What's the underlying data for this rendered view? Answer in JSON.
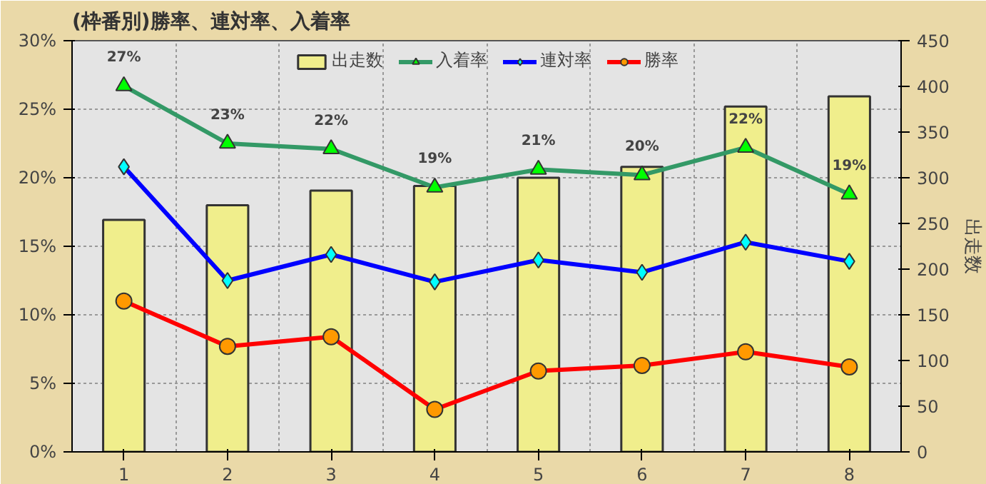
{
  "chart_data": {
    "type": "line",
    "title": "(枠番別)勝率、連対率、入着率",
    "y2label": "出走数",
    "categories": [
      "1",
      "2",
      "3",
      "4",
      "5",
      "6",
      "7",
      "8"
    ],
    "ylim": [
      0,
      30
    ],
    "yticks": [
      {
        "value": 0,
        "label": "0%"
      },
      {
        "value": 5,
        "label": "5%"
      },
      {
        "value": 10,
        "label": "10%"
      },
      {
        "value": 15,
        "label": "15%"
      },
      {
        "value": 20,
        "label": "20%"
      },
      {
        "value": 25,
        "label": "25%"
      },
      {
        "value": 30,
        "label": "30%"
      }
    ],
    "y2lim": [
      0,
      450
    ],
    "y2ticks": [
      0,
      50,
      100,
      150,
      200,
      250,
      300,
      350,
      400,
      450
    ],
    "grid": true,
    "legend": "top",
    "series": [
      {
        "name": "出走数",
        "type": "bar",
        "axis": "y2",
        "color": "#f0ee8c",
        "values": [
          254,
          270,
          286,
          291,
          300,
          312,
          378,
          389
        ]
      },
      {
        "name": "入着率",
        "marker": "triangle",
        "color": "#339966",
        "values": [
          26.7,
          22.5,
          22.1,
          19.3,
          20.6,
          20.2,
          22.2,
          18.8
        ],
        "value_labels": [
          "27%",
          "23%",
          "22%",
          "19%",
          "21%",
          "20%",
          "22%",
          "19%"
        ]
      },
      {
        "name": "連対率",
        "marker": "diamond",
        "color": "#0000ff",
        "values": [
          20.8,
          12.5,
          14.4,
          12.4,
          14.0,
          13.1,
          15.3,
          13.9
        ]
      },
      {
        "name": "勝率",
        "marker": "circle",
        "color": "#ff0000",
        "values": [
          11.0,
          7.7,
          8.4,
          3.1,
          5.9,
          6.3,
          7.3,
          6.2
        ]
      }
    ]
  }
}
